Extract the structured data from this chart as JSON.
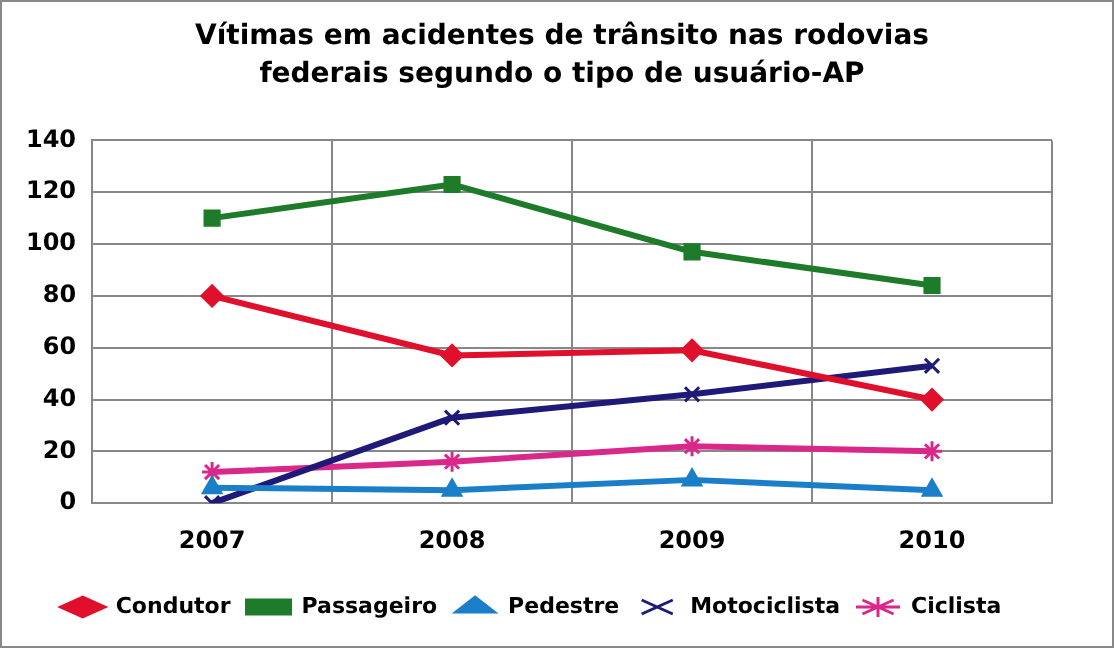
{
  "chart_data": {
    "type": "line",
    "title": "Vítimas em acidentes de trânsito nas rodovias federais segundo o tipo de usuário-AP",
    "categories": [
      "2007",
      "2008",
      "2009",
      "2010"
    ],
    "series": [
      {
        "name": "Condutor",
        "color": "#e0102c",
        "values": [
          80,
          57,
          59,
          40
        ],
        "marker": "diamond"
      },
      {
        "name": "Passageiro",
        "color": "#1e7b2a",
        "values": [
          110,
          123,
          97,
          84
        ],
        "marker": "square"
      },
      {
        "name": "Pedestre",
        "color": "#1a7fc8",
        "values": [
          6,
          5,
          9,
          5
        ],
        "marker": "triangle"
      },
      {
        "name": "Motociclista",
        "color": "#1f1a78",
        "values": [
          0,
          33,
          42,
          53
        ],
        "marker": "cross"
      },
      {
        "name": "Ciclista",
        "color": "#d9288a",
        "values": [
          12,
          16,
          22,
          20
        ],
        "marker": "cross"
      }
    ],
    "ylim": [
      0,
      140
    ],
    "yticks": [
      0,
      20,
      40,
      60,
      80,
      100,
      120,
      140
    ],
    "grid": true,
    "legend": "bottom",
    "line_style": "solid"
  }
}
